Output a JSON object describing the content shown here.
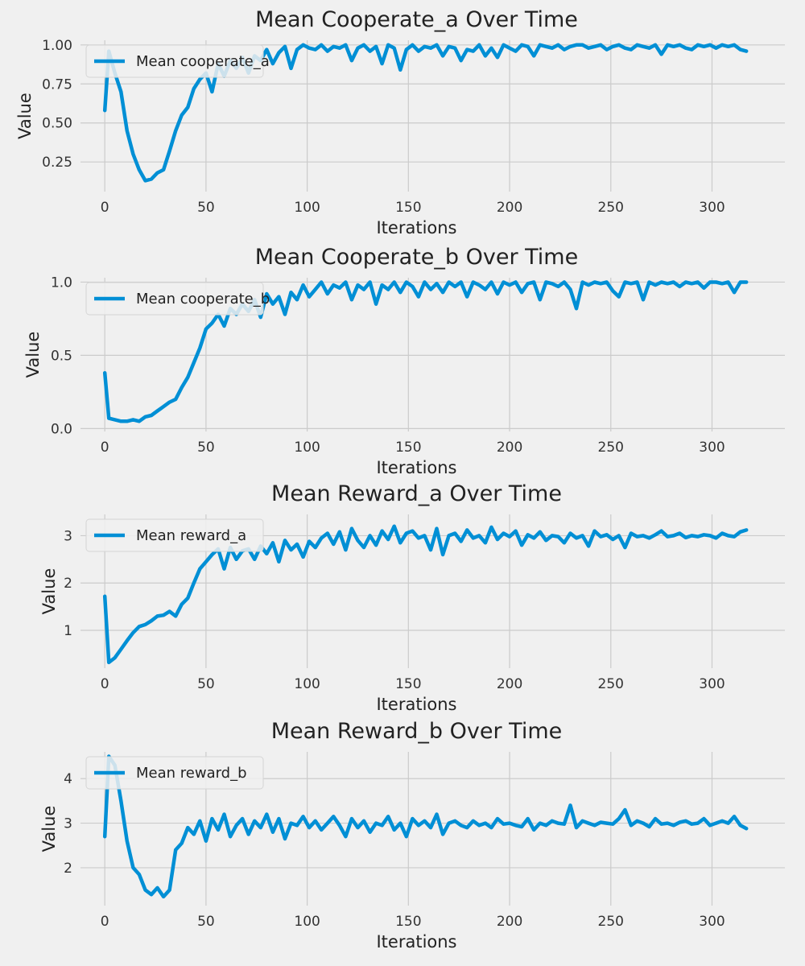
{
  "figure": {
    "background": "#f0f0f0",
    "line_color": "#008fd5",
    "grid_color": "#cbcbcb"
  },
  "chart_data": [
    {
      "type": "line",
      "title": "Mean Cooperate_a Over Time",
      "xlabel": "Iterations",
      "ylabel": "Value",
      "xlim": [
        -12,
        336
      ],
      "ylim": [
        0.06,
        1.03
      ],
      "xticks": [
        0,
        50,
        100,
        150,
        200,
        250,
        300
      ],
      "xtick_labels": [
        "0",
        "50",
        "100",
        "150",
        "200",
        "250",
        "300"
      ],
      "yticks": [
        0.25,
        0.5,
        0.75,
        1.0
      ],
      "ytick_labels": [
        "0.25",
        "0.50",
        "0.75",
        "1.00"
      ],
      "grid": true,
      "legend_position": "upper-left",
      "series": [
        {
          "name": "Mean cooperate_a",
          "x": [
            0,
            2,
            5,
            8,
            11,
            14,
            17,
            20,
            23,
            26,
            29,
            32,
            35,
            38,
            41,
            44,
            47,
            50,
            53,
            56,
            59,
            62,
            65,
            68,
            71,
            74,
            77,
            80,
            83,
            86,
            89,
            92,
            95,
            98,
            101,
            104,
            107,
            110,
            113,
            116,
            119,
            122,
            125,
            128,
            131,
            134,
            137,
            140,
            143,
            146,
            149,
            152,
            155,
            158,
            161,
            164,
            167,
            170,
            173,
            176,
            179,
            182,
            185,
            188,
            191,
            194,
            197,
            200,
            203,
            206,
            209,
            212,
            215,
            218,
            221,
            224,
            227,
            230,
            233,
            236,
            239,
            242,
            245,
            248,
            251,
            254,
            257,
            260,
            263,
            266,
            269,
            272,
            275,
            278,
            281,
            284,
            287,
            290,
            293,
            296,
            299,
            302,
            305,
            308,
            311,
            314,
            317
          ],
          "y": [
            0.58,
            0.96,
            0.82,
            0.7,
            0.45,
            0.3,
            0.2,
            0.13,
            0.14,
            0.18,
            0.2,
            0.32,
            0.45,
            0.55,
            0.6,
            0.72,
            0.78,
            0.82,
            0.7,
            0.88,
            0.8,
            0.9,
            0.85,
            0.92,
            0.82,
            0.93,
            0.9,
            0.97,
            0.88,
            0.95,
            0.99,
            0.85,
            0.97,
            1.0,
            0.98,
            0.97,
            1.0,
            0.96,
            0.99,
            0.98,
            1.0,
            0.9,
            0.98,
            1.0,
            0.96,
            0.99,
            0.88,
            1.0,
            0.98,
            0.84,
            0.97,
            1.0,
            0.96,
            0.99,
            0.98,
            1.0,
            0.93,
            0.99,
            0.98,
            0.9,
            0.97,
            0.96,
            1.0,
            0.93,
            0.98,
            0.92,
            1.0,
            0.98,
            0.96,
            1.0,
            0.99,
            0.93,
            1.0,
            0.99,
            0.98,
            1.0,
            0.97,
            0.99,
            1.0,
            1.0,
            0.98,
            0.99,
            1.0,
            0.97,
            0.99,
            1.0,
            0.98,
            0.97,
            1.0,
            0.99,
            0.98,
            1.0,
            0.94,
            1.0,
            0.99,
            1.0,
            0.98,
            0.97,
            1.0,
            0.99,
            1.0,
            0.98,
            1.0,
            0.99,
            1.0,
            0.97,
            0.96
          ]
        }
      ]
    },
    {
      "type": "line",
      "title": "Mean Cooperate_b Over Time",
      "xlabel": "Iterations",
      "ylabel": "Value",
      "xlim": [
        -12,
        336
      ],
      "ylim": [
        -0.02,
        1.03
      ],
      "xticks": [
        0,
        50,
        100,
        150,
        200,
        250,
        300
      ],
      "xtick_labels": [
        "0",
        "50",
        "100",
        "150",
        "200",
        "250",
        "300"
      ],
      "yticks": [
        0.0,
        0.5,
        1.0
      ],
      "ytick_labels": [
        "0.0",
        "0.5",
        "1.0"
      ],
      "grid": true,
      "legend_position": "upper-left",
      "series": [
        {
          "name": "Mean cooperate_b",
          "x": [
            0,
            2,
            5,
            8,
            11,
            14,
            17,
            20,
            23,
            26,
            29,
            32,
            35,
            38,
            41,
            44,
            47,
            50,
            53,
            56,
            59,
            62,
            65,
            68,
            71,
            74,
            77,
            80,
            83,
            86,
            89,
            92,
            95,
            98,
            101,
            104,
            107,
            110,
            113,
            116,
            119,
            122,
            125,
            128,
            131,
            134,
            137,
            140,
            143,
            146,
            149,
            152,
            155,
            158,
            161,
            164,
            167,
            170,
            173,
            176,
            179,
            182,
            185,
            188,
            191,
            194,
            197,
            200,
            203,
            206,
            209,
            212,
            215,
            218,
            221,
            224,
            227,
            230,
            233,
            236,
            239,
            242,
            245,
            248,
            251,
            254,
            257,
            260,
            263,
            266,
            269,
            272,
            275,
            278,
            281,
            284,
            287,
            290,
            293,
            296,
            299,
            302,
            305,
            308,
            311,
            314,
            317
          ],
          "y": [
            0.38,
            0.07,
            0.06,
            0.05,
            0.05,
            0.06,
            0.05,
            0.08,
            0.09,
            0.12,
            0.15,
            0.18,
            0.2,
            0.28,
            0.35,
            0.45,
            0.55,
            0.68,
            0.72,
            0.78,
            0.7,
            0.82,
            0.78,
            0.85,
            0.8,
            0.88,
            0.76,
            0.92,
            0.85,
            0.9,
            0.78,
            0.93,
            0.88,
            0.98,
            0.9,
            0.95,
            1.0,
            0.92,
            0.98,
            0.96,
            1.0,
            0.88,
            0.98,
            0.95,
            1.0,
            0.85,
            0.98,
            0.95,
            1.0,
            0.93,
            1.0,
            0.97,
            0.9,
            1.0,
            0.95,
            0.99,
            0.93,
            1.0,
            0.97,
            1.0,
            0.9,
            1.0,
            0.98,
            0.95,
            1.0,
            0.92,
            1.0,
            0.98,
            1.0,
            0.93,
            0.99,
            1.0,
            0.88,
            1.0,
            0.99,
            0.97,
            1.0,
            0.95,
            0.82,
            1.0,
            0.98,
            1.0,
            0.99,
            1.0,
            0.94,
            0.9,
            1.0,
            0.99,
            1.0,
            0.88,
            1.0,
            0.98,
            1.0,
            0.99,
            1.0,
            0.97,
            1.0,
            0.99,
            1.0,
            0.96,
            1.0,
            1.0,
            0.99,
            1.0,
            0.93,
            1.0,
            1.0
          ]
        }
      ]
    },
    {
      "type": "line",
      "title": "Mean Reward_a Over Time",
      "xlabel": "Iterations",
      "ylabel": "Value",
      "xlim": [
        -12,
        336
      ],
      "ylim": [
        0.2,
        3.45
      ],
      "xticks": [
        0,
        50,
        100,
        150,
        200,
        250,
        300
      ],
      "xtick_labels": [
        "0",
        "50",
        "100",
        "150",
        "200",
        "250",
        "300"
      ],
      "yticks": [
        1,
        2,
        3
      ],
      "ytick_labels": [
        "1",
        "2",
        "3"
      ],
      "grid": true,
      "legend_position": "upper-left",
      "series": [
        {
          "name": "Mean reward_a",
          "x": [
            0,
            2,
            5,
            8,
            11,
            14,
            17,
            20,
            23,
            26,
            29,
            32,
            35,
            38,
            41,
            44,
            47,
            50,
            53,
            56,
            59,
            62,
            65,
            68,
            71,
            74,
            77,
            80,
            83,
            86,
            89,
            92,
            95,
            98,
            101,
            104,
            107,
            110,
            113,
            116,
            119,
            122,
            125,
            128,
            131,
            134,
            137,
            140,
            143,
            146,
            149,
            152,
            155,
            158,
            161,
            164,
            167,
            170,
            173,
            176,
            179,
            182,
            185,
            188,
            191,
            194,
            197,
            200,
            203,
            206,
            209,
            212,
            215,
            218,
            221,
            224,
            227,
            230,
            233,
            236,
            239,
            242,
            245,
            248,
            251,
            254,
            257,
            260,
            263,
            266,
            269,
            272,
            275,
            278,
            281,
            284,
            287,
            290,
            293,
            296,
            299,
            302,
            305,
            308,
            311,
            314,
            317
          ],
          "y": [
            1.72,
            0.32,
            0.42,
            0.6,
            0.78,
            0.95,
            1.08,
            1.12,
            1.2,
            1.3,
            1.32,
            1.4,
            1.3,
            1.55,
            1.68,
            2.0,
            2.3,
            2.45,
            2.6,
            2.72,
            2.3,
            2.75,
            2.5,
            2.68,
            2.72,
            2.5,
            2.78,
            2.62,
            2.85,
            2.45,
            2.9,
            2.7,
            2.82,
            2.55,
            2.88,
            2.75,
            2.95,
            3.05,
            2.82,
            3.08,
            2.7,
            3.15,
            2.9,
            2.75,
            3.0,
            2.8,
            3.1,
            2.92,
            3.2,
            2.85,
            3.05,
            3.1,
            2.95,
            3.0,
            2.7,
            3.15,
            2.6,
            3.0,
            3.05,
            2.88,
            3.12,
            2.95,
            3.0,
            2.85,
            3.18,
            2.92,
            3.05,
            2.98,
            3.1,
            2.8,
            3.02,
            2.95,
            3.08,
            2.9,
            3.0,
            2.98,
            2.85,
            3.05,
            2.95,
            3.0,
            2.78,
            3.1,
            2.98,
            3.02,
            2.92,
            3.0,
            2.75,
            3.05,
            2.98,
            3.0,
            2.95,
            3.02,
            3.1,
            2.98,
            3.0,
            3.05,
            2.96,
            3.0,
            2.98,
            3.02,
            3.0,
            2.95,
            3.05,
            3.0,
            2.98,
            3.08,
            3.12
          ]
        }
      ]
    },
    {
      "type": "line",
      "title": "Mean Reward_b Over Time",
      "xlabel": "Iterations",
      "ylabel": "Value",
      "xlim": [
        -12,
        336
      ],
      "ylim": [
        1.15,
        4.6
      ],
      "xticks": [
        0,
        50,
        100,
        150,
        200,
        250,
        300
      ],
      "xtick_labels": [
        "0",
        "50",
        "100",
        "150",
        "200",
        "250",
        "300"
      ],
      "yticks": [
        2,
        3,
        4
      ],
      "ytick_labels": [
        "2",
        "3",
        "4"
      ],
      "grid": true,
      "legend_position": "upper-left",
      "series": [
        {
          "name": "Mean reward_b",
          "x": [
            0,
            2,
            5,
            8,
            11,
            14,
            17,
            20,
            23,
            26,
            29,
            32,
            35,
            38,
            41,
            44,
            47,
            50,
            53,
            56,
            59,
            62,
            65,
            68,
            71,
            74,
            77,
            80,
            83,
            86,
            89,
            92,
            95,
            98,
            101,
            104,
            107,
            110,
            113,
            116,
            119,
            122,
            125,
            128,
            131,
            134,
            137,
            140,
            143,
            146,
            149,
            152,
            155,
            158,
            161,
            164,
            167,
            170,
            173,
            176,
            179,
            182,
            185,
            188,
            191,
            194,
            197,
            200,
            203,
            206,
            209,
            212,
            215,
            218,
            221,
            224,
            227,
            230,
            233,
            236,
            239,
            242,
            245,
            248,
            251,
            254,
            257,
            260,
            263,
            266,
            269,
            272,
            275,
            278,
            281,
            284,
            287,
            290,
            293,
            296,
            299,
            302,
            305,
            308,
            311,
            314,
            317
          ],
          "y": [
            2.7,
            4.5,
            4.3,
            3.5,
            2.6,
            2.0,
            1.85,
            1.5,
            1.4,
            1.55,
            1.35,
            1.5,
            2.4,
            2.55,
            2.9,
            2.75,
            3.05,
            2.6,
            3.1,
            2.85,
            3.2,
            2.7,
            2.95,
            3.1,
            2.75,
            3.05,
            2.9,
            3.2,
            2.8,
            3.1,
            2.65,
            3.0,
            2.95,
            3.15,
            2.9,
            3.05,
            2.85,
            3.0,
            3.15,
            2.95,
            2.7,
            3.1,
            2.9,
            3.05,
            2.8,
            3.0,
            2.95,
            3.15,
            2.85,
            3.0,
            2.7,
            3.1,
            2.95,
            3.05,
            2.9,
            3.2,
            2.75,
            3.0,
            3.05,
            2.95,
            2.9,
            3.05,
            2.95,
            3.0,
            2.9,
            3.1,
            2.98,
            3.0,
            2.95,
            2.92,
            3.1,
            2.85,
            3.0,
            2.95,
            3.05,
            3.0,
            2.98,
            3.4,
            2.9,
            3.05,
            3.0,
            2.95,
            3.02,
            3.0,
            2.98,
            3.1,
            3.3,
            2.95,
            3.05,
            3.0,
            2.92,
            3.1,
            2.98,
            3.0,
            2.95,
            3.02,
            3.05,
            2.98,
            3.0,
            3.1,
            2.95,
            3.0,
            3.05,
            3.0,
            3.15,
            2.95,
            2.88
          ]
        }
      ]
    }
  ]
}
